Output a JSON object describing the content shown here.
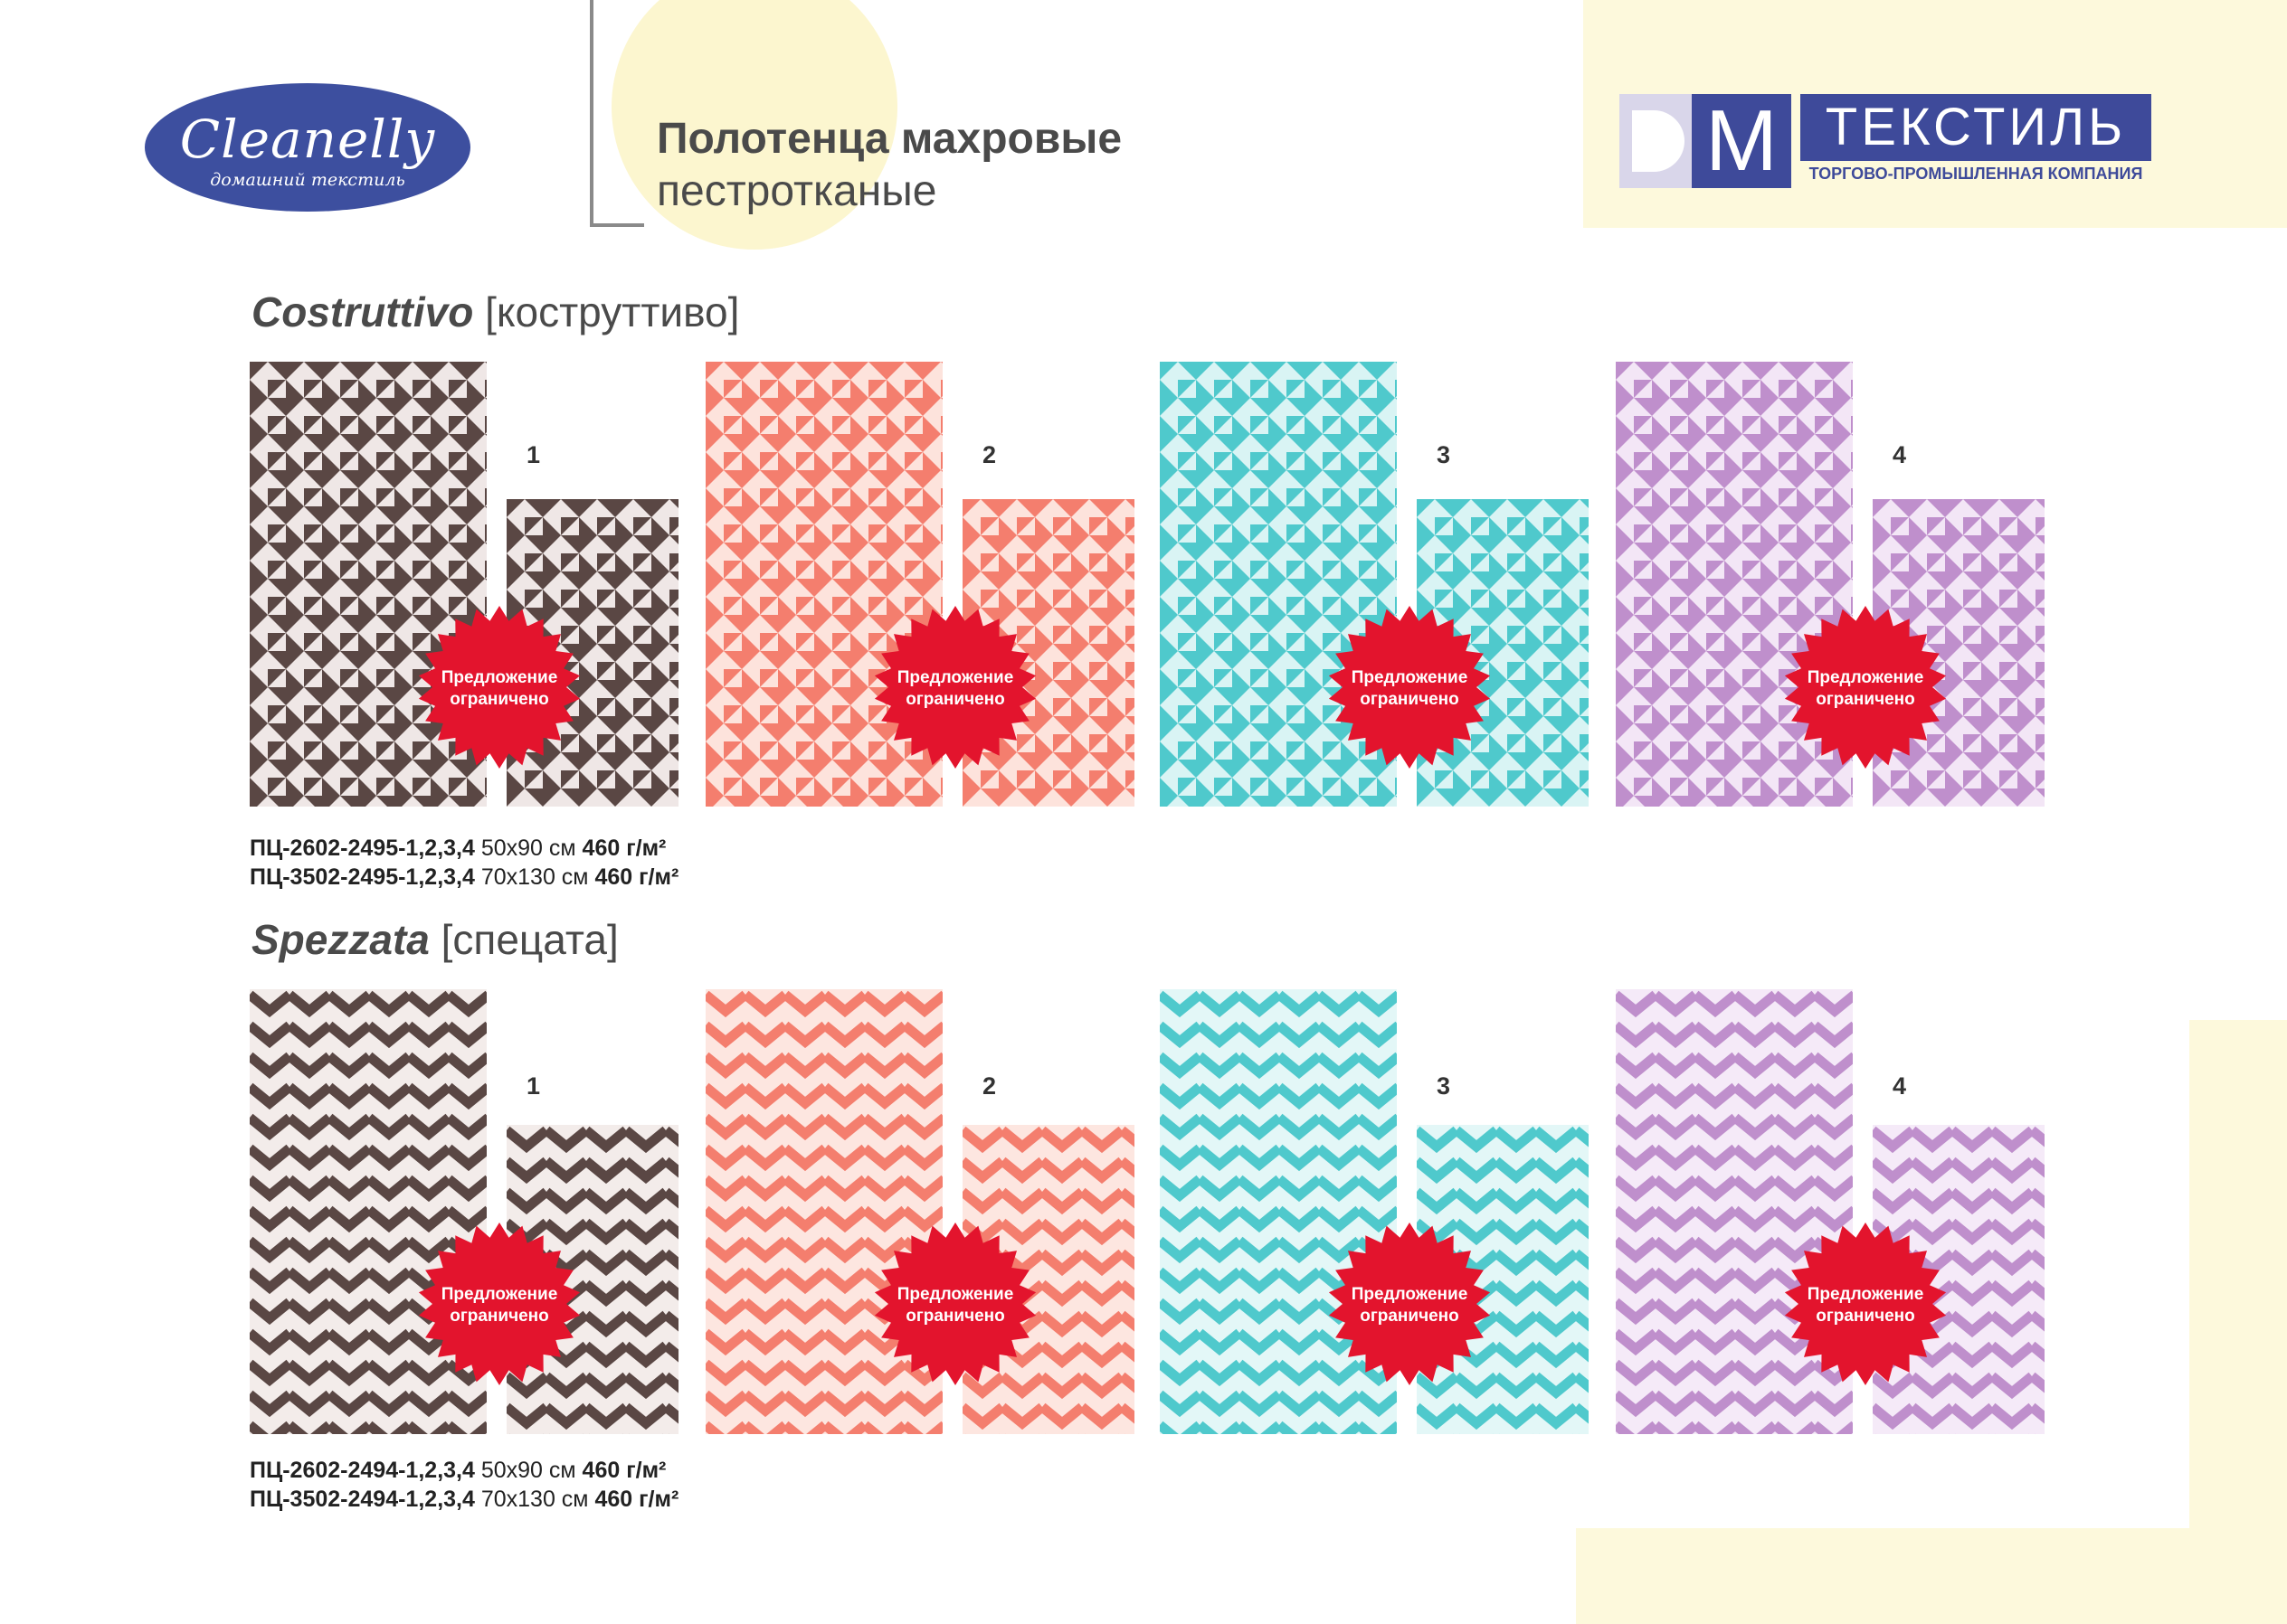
{
  "brand": {
    "logo_script": "Cleanelly",
    "logo_subtitle": "домашний текстиль"
  },
  "header": {
    "title_line1": "Полотенца махровые",
    "title_line2": "пестротканые"
  },
  "partner": {
    "logo_letters": "DM",
    "logo_word": "ТЕКСТИЛЬ",
    "logo_tagline": "ТОРГОВО-ПРОМЫШЛЕННАЯ КОМПАНИЯ"
  },
  "badge_text_line1": "Предложение",
  "badge_text_line2": "ограничено",
  "colors": {
    "brown": "#5a4744",
    "coral": "#f47e6e",
    "turquoise": "#4fc9cc",
    "lilac": "#bf8fcc",
    "badge_red": "#e3142d",
    "brand_blue": "#3d4f9f",
    "cream": "#fdf9dc"
  },
  "sections": [
    {
      "name": "Costruttivo",
      "translit": "[коструттиво]",
      "pattern": "triangles",
      "variants": [
        {
          "number": "1",
          "color": "brown"
        },
        {
          "number": "2",
          "color": "coral"
        },
        {
          "number": "3",
          "color": "turquoise"
        },
        {
          "number": "4",
          "color": "lilac"
        }
      ],
      "specs": [
        {
          "code": "ПЦ-2602-2495-1,2,3,4",
          "size": "50х90 см",
          "density": "460 г/м²"
        },
        {
          "code": "ПЦ-3502-2495-1,2,3,4",
          "size": "70х130 см",
          "density": "460 г/м²"
        }
      ]
    },
    {
      "name": "Spezzata",
      "translit": "[спецата]",
      "pattern": "chevron",
      "variants": [
        {
          "number": "1",
          "color": "brown"
        },
        {
          "number": "2",
          "color": "coral"
        },
        {
          "number": "3",
          "color": "turquoise"
        },
        {
          "number": "4",
          "color": "lilac"
        }
      ],
      "specs": [
        {
          "code": "ПЦ-2602-2494-1,2,3,4",
          "size": "50х90 см",
          "density": "460 г/м²"
        },
        {
          "code": "ПЦ-3502-2494-1,2,3,4",
          "size": "70х130 см",
          "density": "460 г/м²"
        }
      ]
    }
  ]
}
